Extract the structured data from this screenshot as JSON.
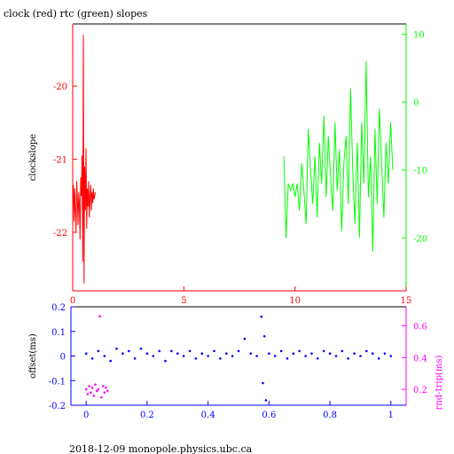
{
  "title": "clock (red) rtc (green) slopes",
  "footer": "2018-12-09  monopole.physics.ubc.ca",
  "colors": {
    "red": "#ff0000",
    "green": "#00ff00",
    "blue": "#0000ff",
    "magenta": "#ff00ff",
    "axis": "#000000"
  },
  "chart_data": [
    {
      "type": "line",
      "title": "clock (red) rtc (green) slopes",
      "xlabel": "",
      "ylabel": "clockslope",
      "xlim": [
        0,
        15
      ],
      "ylim": [
        -22.8,
        -19.15
      ],
      "y2lim": [
        -27.8,
        11.5
      ],
      "x_ticks": [
        "0",
        "5",
        "10",
        "15"
      ],
      "y_ticks": [
        "-20",
        "-21",
        "-22"
      ],
      "y2_ticks": [
        "10",
        "0",
        "-10",
        "-20"
      ],
      "series": [
        {
          "name": "clock (red)",
          "axis": "left",
          "color": "#ff0000",
          "x": [
            0.0,
            0.03,
            0.06,
            0.09,
            0.12,
            0.15,
            0.18,
            0.21,
            0.24,
            0.27,
            0.3,
            0.33,
            0.36,
            0.39,
            0.42,
            0.45,
            0.48,
            0.51,
            0.54,
            0.57,
            0.6,
            0.63,
            0.66,
            0.69,
            0.72,
            0.75,
            0.78,
            0.81,
            0.84,
            0.87,
            0.9,
            0.93,
            0.96,
            0.99,
            1.02
          ],
          "y": [
            -21.6,
            -21.35,
            -21.85,
            -21.4,
            -21.7,
            -22.0,
            -21.3,
            -21.55,
            -21.9,
            -21.45,
            -21.6,
            -22.1,
            -21.25,
            -21.5,
            -20.95,
            -22.4,
            -19.3,
            -22.7,
            -21.1,
            -21.7,
            -20.85,
            -21.95,
            -21.4,
            -21.65,
            -21.3,
            -21.8,
            -21.5,
            -21.35,
            -21.7,
            -21.45,
            -21.6,
            -21.4,
            -21.55,
            -21.5,
            -21.45
          ]
        },
        {
          "name": "rtc (green)",
          "axis": "right",
          "color": "#00ff00",
          "x": [
            9.5,
            9.6,
            9.7,
            9.8,
            9.9,
            10.0,
            10.1,
            10.2,
            10.3,
            10.4,
            10.5,
            10.6,
            10.7,
            10.8,
            10.9,
            11.0,
            11.1,
            11.2,
            11.3,
            11.4,
            11.5,
            11.6,
            11.7,
            11.8,
            11.9,
            12.0,
            12.1,
            12.2,
            12.3,
            12.4,
            12.5,
            12.6,
            12.7,
            12.8,
            12.9,
            13.0,
            13.1,
            13.2,
            13.3,
            13.4,
            13.5,
            13.6,
            13.7,
            13.8,
            13.9,
            14.0,
            14.1,
            14.2,
            14.3,
            14.4
          ],
          "y": [
            -8,
            -20,
            -12,
            -13,
            -12,
            -14,
            -12,
            -16,
            -9,
            -13,
            -18,
            -4,
            -10,
            -15,
            -8,
            -17,
            -6,
            -12,
            -2,
            -14,
            -5,
            -11,
            -16,
            -3,
            -13,
            -7,
            -19,
            -9,
            -5,
            -15,
            2,
            -10,
            -18,
            -6,
            -20,
            -3,
            -12,
            6,
            -14,
            -8,
            -22,
            -4,
            -15,
            -1,
            -9,
            -17,
            -6,
            -12,
            -3,
            -10
          ]
        }
      ]
    },
    {
      "type": "scatter",
      "title": "",
      "xlabel": "",
      "ylabel": "offset(ms)",
      "y2label": "rnd-trip(ms)",
      "xlim": [
        -0.05,
        1.05
      ],
      "ylim": [
        -0.2,
        0.2
      ],
      "y2lim": [
        0.1,
        0.72
      ],
      "x_ticks": [
        "0",
        "0.2",
        "0.4",
        "0.6",
        "0.8",
        "1"
      ],
      "y_ticks": [
        "0.2",
        "0.1",
        "0",
        "-0.1",
        "-0.2"
      ],
      "y2_ticks": [
        "0.6",
        "0.4",
        "0.2"
      ],
      "series": [
        {
          "name": "offset(ms)",
          "axis": "left",
          "color": "#0000ff",
          "x": [
            0.0,
            0.02,
            0.04,
            0.06,
            0.08,
            0.1,
            0.12,
            0.14,
            0.16,
            0.18,
            0.2,
            0.22,
            0.24,
            0.26,
            0.28,
            0.3,
            0.32,
            0.34,
            0.36,
            0.38,
            0.4,
            0.42,
            0.44,
            0.46,
            0.48,
            0.5,
            0.52,
            0.54,
            0.56,
            0.575,
            0.58,
            0.585,
            0.59,
            0.6,
            0.62,
            0.64,
            0.66,
            0.68,
            0.7,
            0.72,
            0.74,
            0.76,
            0.78,
            0.8,
            0.82,
            0.84,
            0.86,
            0.88,
            0.9,
            0.92,
            0.94,
            0.96,
            0.98,
            1.0
          ],
          "y": [
            0.01,
            -0.01,
            0.02,
            0.0,
            -0.02,
            0.03,
            0.01,
            0.02,
            -0.01,
            0.03,
            0.01,
            0.0,
            0.02,
            -0.02,
            0.02,
            0.01,
            0.0,
            0.02,
            -0.01,
            0.01,
            0.0,
            0.02,
            -0.01,
            0.01,
            0.0,
            0.02,
            0.07,
            0.01,
            0.0,
            0.16,
            -0.11,
            0.08,
            -0.18,
            0.01,
            0.0,
            0.02,
            -0.01,
            0.01,
            0.02,
            0.0,
            0.01,
            -0.01,
            0.02,
            0.01,
            0.0,
            0.02,
            -0.01,
            0.01,
            0.0,
            0.02,
            0.01,
            -0.01,
            0.01,
            0.0
          ]
        },
        {
          "name": "rnd-trip(ms)",
          "axis": "right",
          "color": "#ff00ff",
          "x": [
            0.0,
            0.005,
            0.01,
            0.015,
            0.02,
            0.025,
            0.03,
            0.035,
            0.04,
            0.045,
            0.05,
            0.055,
            0.06,
            0.065,
            0.07
          ],
          "y": [
            0.2,
            0.17,
            0.22,
            0.18,
            0.21,
            0.16,
            0.23,
            0.19,
            0.2,
            0.66,
            0.15,
            0.22,
            0.18,
            0.21,
            0.19
          ]
        }
      ]
    }
  ]
}
